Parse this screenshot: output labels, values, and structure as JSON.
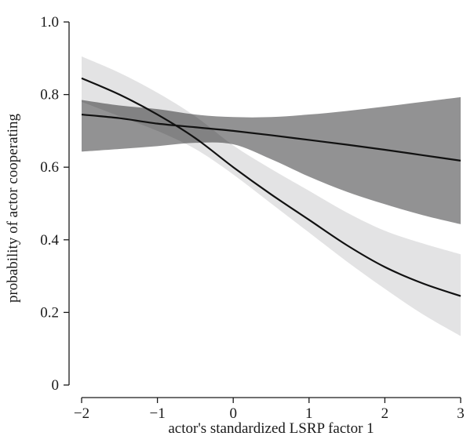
{
  "chart_data": {
    "type": "line",
    "title": "",
    "xlabel": "actor's standardized LSRP factor 1",
    "ylabel": "probability of actor cooperating",
    "xlim": [
      -2,
      3
    ],
    "ylim": [
      0,
      1
    ],
    "x_ticks": [
      {
        "value": -2,
        "label": "−2"
      },
      {
        "value": -1,
        "label": "−1"
      },
      {
        "value": 0,
        "label": "0"
      },
      {
        "value": 1,
        "label": "1"
      },
      {
        "value": 2,
        "label": "2"
      },
      {
        "value": 3,
        "label": "3"
      }
    ],
    "y_ticks": [
      {
        "value": 0,
        "label": "0"
      },
      {
        "value": 0.2,
        "label": "0.2"
      },
      {
        "value": 0.4,
        "label": "0.4"
      },
      {
        "value": 0.6,
        "label": "0.6"
      },
      {
        "value": 0.8,
        "label": "0.8"
      },
      {
        "value": 1.0,
        "label": "1.0"
      }
    ],
    "grid": false,
    "legend": "none",
    "series": [
      {
        "band_color": "#e3e3e4",
        "line_color": "#111111",
        "x": [
          -2,
          -1.5,
          -1,
          -0.5,
          0,
          0.5,
          1,
          1.5,
          2,
          2.5,
          3
        ],
        "y": [
          0.845,
          0.8,
          0.745,
          0.68,
          0.6,
          0.525,
          0.455,
          0.385,
          0.325,
          0.28,
          0.245
        ],
        "lower": [
          0.78,
          0.74,
          0.7,
          0.65,
          0.58,
          0.5,
          0.42,
          0.34,
          0.265,
          0.195,
          0.135
        ],
        "upper": [
          0.905,
          0.86,
          0.805,
          0.74,
          0.66,
          0.595,
          0.535,
          0.475,
          0.425,
          0.39,
          0.36
        ]
      },
      {
        "band_color": "#929293",
        "line_color": "#111111",
        "x": [
          -2,
          -1.5,
          -1,
          -0.5,
          0,
          0.5,
          1,
          1.5,
          2,
          2.5,
          3
        ],
        "y": [
          0.745,
          0.735,
          0.72,
          0.71,
          0.7,
          0.688,
          0.675,
          0.662,
          0.648,
          0.633,
          0.618
        ],
        "lower": [
          0.643,
          0.65,
          0.658,
          0.667,
          0.663,
          0.622,
          0.574,
          0.532,
          0.498,
          0.468,
          0.443
        ],
        "upper": [
          0.785,
          0.77,
          0.76,
          0.745,
          0.738,
          0.738,
          0.745,
          0.755,
          0.767,
          0.78,
          0.793
        ]
      }
    ]
  }
}
